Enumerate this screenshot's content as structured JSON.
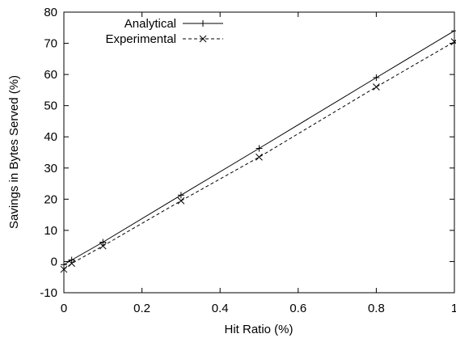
{
  "chart_data": {
    "type": "line",
    "title": "",
    "xlabel": "Hit Ratio (%)",
    "ylabel": "Savings in Bytes Served (%)",
    "xlim": [
      0,
      1
    ],
    "ylim": [
      -10,
      80
    ],
    "xticks": [
      0,
      0.2,
      0.4,
      0.6,
      0.8,
      1
    ],
    "xtick_labels": [
      "0",
      "0.2",
      "0.4",
      "0.6",
      "0.8",
      "1"
    ],
    "yticks": [
      -10,
      0,
      10,
      20,
      30,
      40,
      50,
      60,
      70,
      80
    ],
    "ytick_labels": [
      "-10",
      "0",
      "10",
      "20",
      "30",
      "40",
      "50",
      "60",
      "70",
      "80"
    ],
    "grid": false,
    "legend_position": "top-left",
    "series": [
      {
        "name": "Analytical",
        "line_style": "solid",
        "marker": "plus",
        "color": "#000000",
        "x": [
          0,
          0.02,
          0.1,
          0.3,
          0.5,
          0.8,
          1
        ],
        "y": [
          -1.0,
          0.5,
          6.2,
          21.3,
          36.3,
          59.0,
          74.0
        ]
      },
      {
        "name": "Experimental",
        "line_style": "dashed",
        "marker": "cross",
        "color": "#000000",
        "x": [
          0,
          0.02,
          0.1,
          0.3,
          0.5,
          0.8,
          1
        ],
        "y": [
          -2.5,
          -0.6,
          5.0,
          19.5,
          33.5,
          56.0,
          70.5
        ]
      }
    ]
  }
}
